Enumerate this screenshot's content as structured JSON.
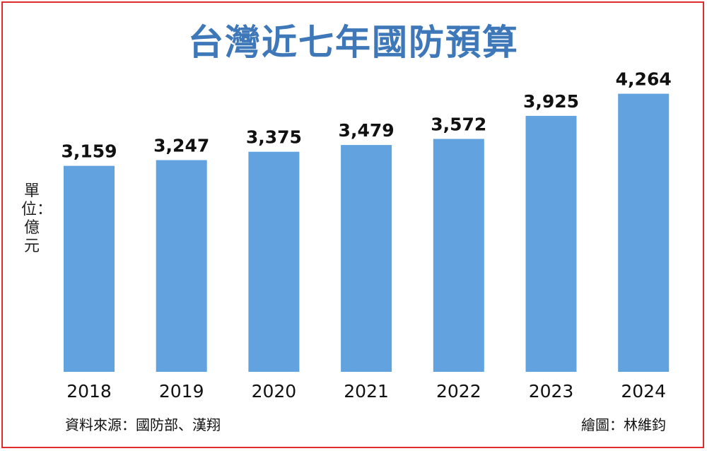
{
  "title": "台灣近七年國防預算",
  "unit_label": "單位：億元",
  "source": "資料來源：國防部、漢翔",
  "credit": "繪圖：林維鈞",
  "chart_data": {
    "type": "bar",
    "title": "台灣近七年國防預算",
    "categories": [
      "2018",
      "2019",
      "2020",
      "2021",
      "2022",
      "2023",
      "2024"
    ],
    "values": [
      3159,
      3247,
      3375,
      3479,
      3572,
      3925,
      4264
    ],
    "value_labels": [
      "3,159",
      "3,247",
      "3,375",
      "3,479",
      "3,572",
      "3,925",
      "4,264"
    ],
    "ylabel": "單位：億元",
    "ylim": [
      0,
      4300
    ],
    "grid": false,
    "bar_color": "#62a3df"
  },
  "colors": {
    "title": "#3f78b8",
    "border": "#e02b2b"
  }
}
